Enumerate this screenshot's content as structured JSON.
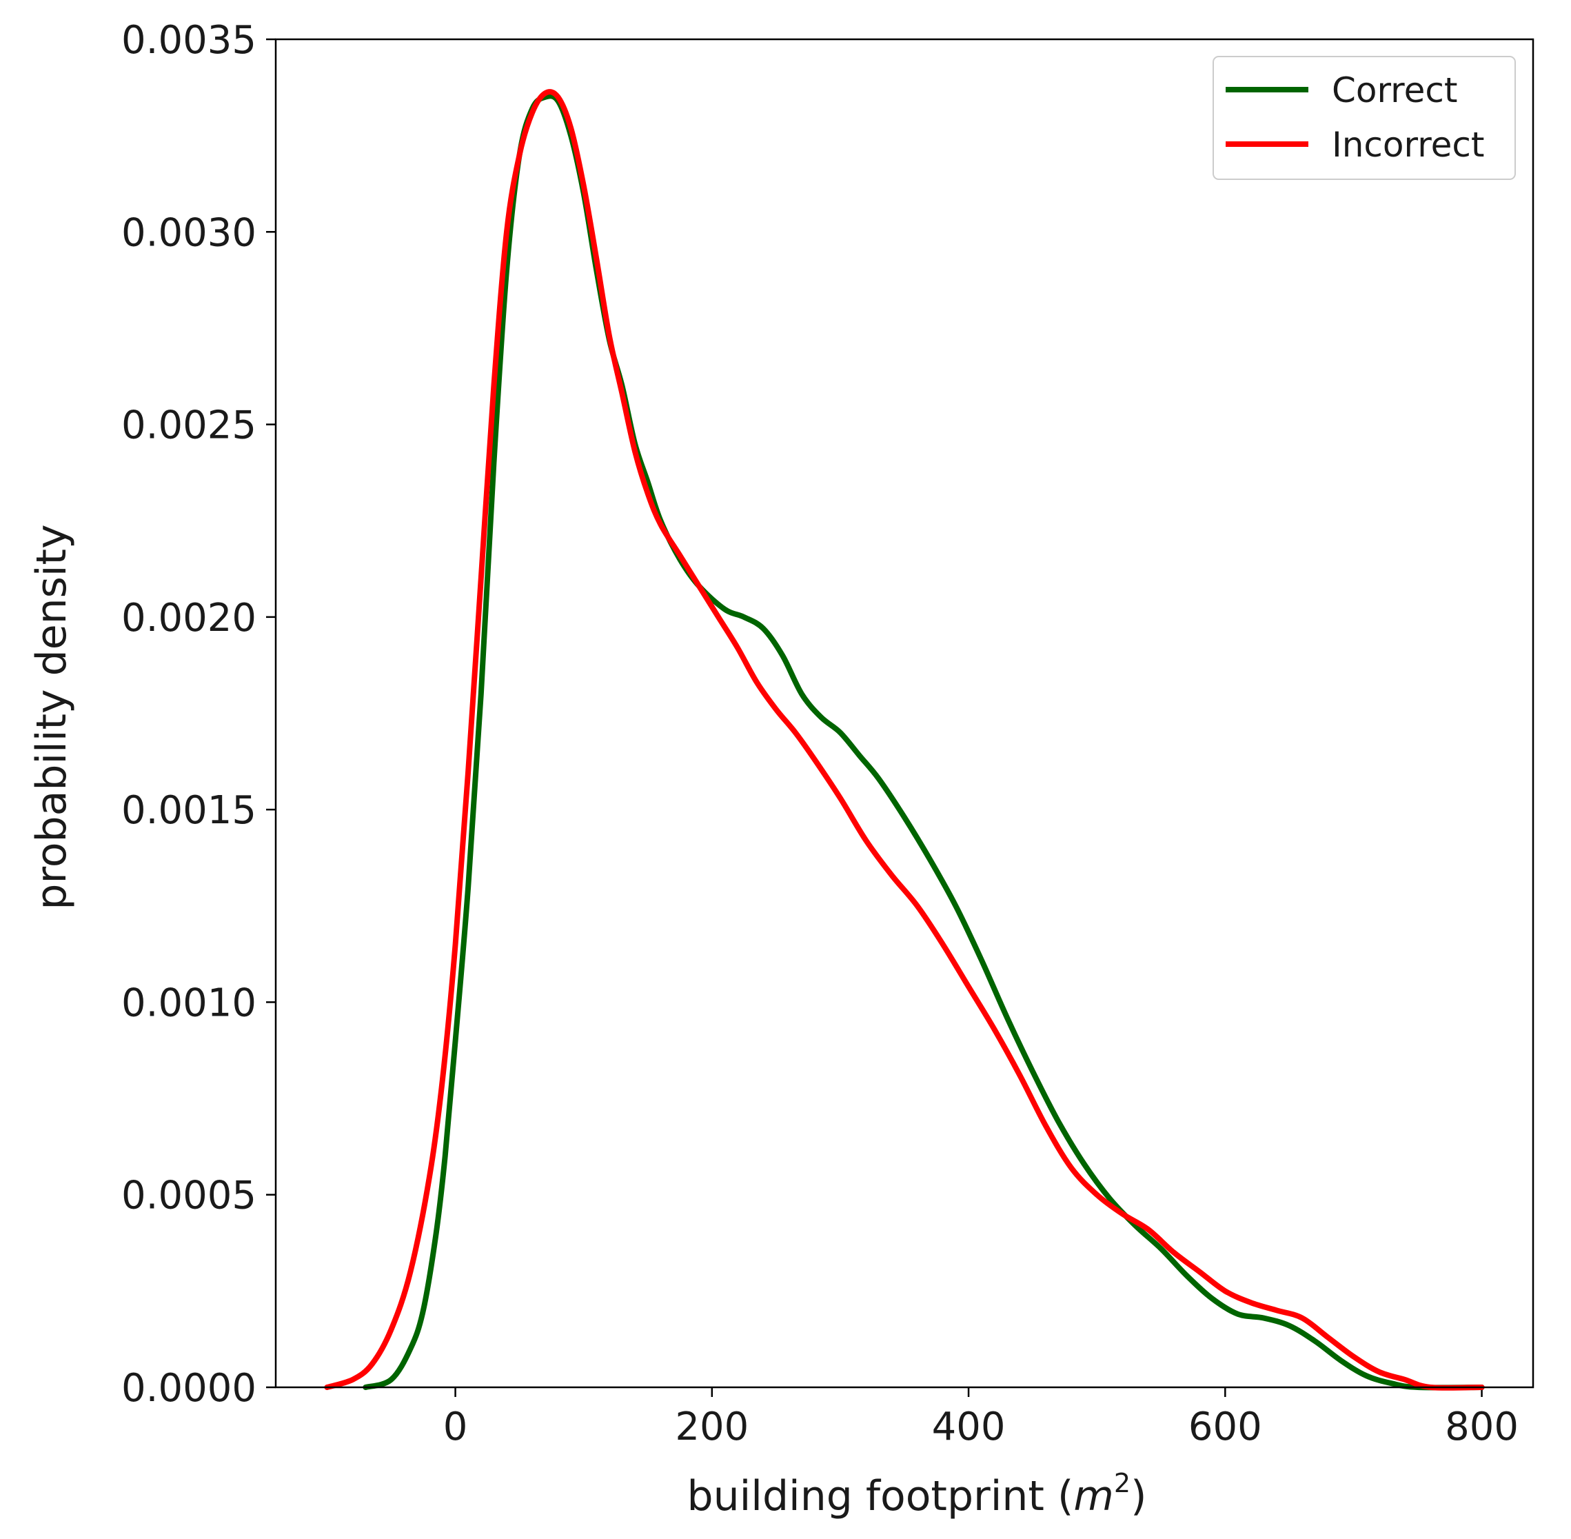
{
  "chart_data": {
    "type": "line",
    "title": "",
    "xlabel": "building footprint (",
    "xlabel_var": "m",
    "xlabel_sup": "2",
    "xlabel_end": ")",
    "ylabel": "probability density",
    "xlim": [
      -140,
      840
    ],
    "ylim": [
      0,
      0.0035
    ],
    "xticks": [
      0,
      200,
      400,
      600,
      800
    ],
    "xtick_labels": [
      "0",
      "200",
      "400",
      "600",
      "800"
    ],
    "yticks": [
      0,
      0.0005,
      0.001,
      0.0015,
      0.002,
      0.0025,
      0.003,
      0.0035
    ],
    "ytick_labels": [
      "0.0000",
      "0.0005",
      "0.0010",
      "0.0015",
      "0.0020",
      "0.0025",
      "0.0030",
      "0.0035"
    ],
    "grid": false,
    "legend_position": "top-right",
    "series": [
      {
        "name": "Correct",
        "color": "#006400",
        "points": [
          [
            -70,
            0.0
          ],
          [
            -50,
            2e-05
          ],
          [
            -35,
            0.0001
          ],
          [
            -25,
            0.0002
          ],
          [
            -15,
            0.0004
          ],
          [
            -8,
            0.0006
          ],
          [
            0,
            0.0009
          ],
          [
            10,
            0.0013
          ],
          [
            20,
            0.0018
          ],
          [
            30,
            0.0024
          ],
          [
            40,
            0.0029
          ],
          [
            50,
            0.0032
          ],
          [
            60,
            0.00332
          ],
          [
            70,
            0.00335
          ],
          [
            80,
            0.00334
          ],
          [
            90,
            0.00325
          ],
          [
            100,
            0.0031
          ],
          [
            110,
            0.0029
          ],
          [
            120,
            0.00272
          ],
          [
            130,
            0.0026
          ],
          [
            140,
            0.00245
          ],
          [
            150,
            0.00235
          ],
          [
            160,
            0.00225
          ],
          [
            175,
            0.00215
          ],
          [
            190,
            0.00208
          ],
          [
            210,
            0.00202
          ],
          [
            225,
            0.002
          ],
          [
            240,
            0.00197
          ],
          [
            255,
            0.0019
          ],
          [
            270,
            0.0018
          ],
          [
            285,
            0.00174
          ],
          [
            300,
            0.0017
          ],
          [
            315,
            0.00164
          ],
          [
            330,
            0.00158
          ],
          [
            350,
            0.00148
          ],
          [
            370,
            0.00137
          ],
          [
            390,
            0.00125
          ],
          [
            410,
            0.00111
          ],
          [
            430,
            0.00096
          ],
          [
            450,
            0.00082
          ],
          [
            470,
            0.00069
          ],
          [
            490,
            0.00058
          ],
          [
            510,
            0.00049
          ],
          [
            530,
            0.00042
          ],
          [
            550,
            0.00036
          ],
          [
            570,
            0.00029
          ],
          [
            590,
            0.00023
          ],
          [
            610,
            0.00019
          ],
          [
            630,
            0.00018
          ],
          [
            650,
            0.00016
          ],
          [
            670,
            0.00012
          ],
          [
            690,
            7e-05
          ],
          [
            710,
            3e-05
          ],
          [
            730,
            1e-05
          ],
          [
            750,
            0.0
          ],
          [
            800,
            0.0
          ]
        ]
      },
      {
        "name": "Incorrect",
        "color": "#ff0000",
        "points": [
          [
            -100,
            0.0
          ],
          [
            -80,
            2e-05
          ],
          [
            -65,
            6e-05
          ],
          [
            -50,
            0.00015
          ],
          [
            -35,
            0.0003
          ],
          [
            -20,
            0.00055
          ],
          [
            -10,
            0.0008
          ],
          [
            0,
            0.00115
          ],
          [
            10,
            0.0016
          ],
          [
            20,
            0.0021
          ],
          [
            30,
            0.0026
          ],
          [
            40,
            0.003
          ],
          [
            50,
            0.0032
          ],
          [
            60,
            0.00331
          ],
          [
            70,
            0.00336
          ],
          [
            80,
            0.00335
          ],
          [
            90,
            0.00327
          ],
          [
            100,
            0.00312
          ],
          [
            110,
            0.00293
          ],
          [
            120,
            0.00273
          ],
          [
            130,
            0.00258
          ],
          [
            140,
            0.00243
          ],
          [
            150,
            0.00232
          ],
          [
            160,
            0.00224
          ],
          [
            175,
            0.00216
          ],
          [
            190,
            0.00208
          ],
          [
            205,
            0.002
          ],
          [
            220,
            0.00192
          ],
          [
            235,
            0.00183
          ],
          [
            250,
            0.00176
          ],
          [
            265,
            0.0017
          ],
          [
            280,
            0.00163
          ],
          [
            300,
            0.00153
          ],
          [
            320,
            0.00142
          ],
          [
            340,
            0.00133
          ],
          [
            360,
            0.00125
          ],
          [
            380,
            0.00115
          ],
          [
            400,
            0.00104
          ],
          [
            420,
            0.00093
          ],
          [
            440,
            0.00081
          ],
          [
            460,
            0.00068
          ],
          [
            480,
            0.00057
          ],
          [
            500,
            0.0005
          ],
          [
            520,
            0.00045
          ],
          [
            540,
            0.00041
          ],
          [
            560,
            0.00035
          ],
          [
            580,
            0.0003
          ],
          [
            600,
            0.00025
          ],
          [
            620,
            0.00022
          ],
          [
            640,
            0.0002
          ],
          [
            660,
            0.00018
          ],
          [
            680,
            0.00013
          ],
          [
            700,
            8e-05
          ],
          [
            720,
            4e-05
          ],
          [
            740,
            2e-05
          ],
          [
            760,
            0.0
          ],
          [
            800,
            0.0
          ]
        ]
      }
    ]
  }
}
